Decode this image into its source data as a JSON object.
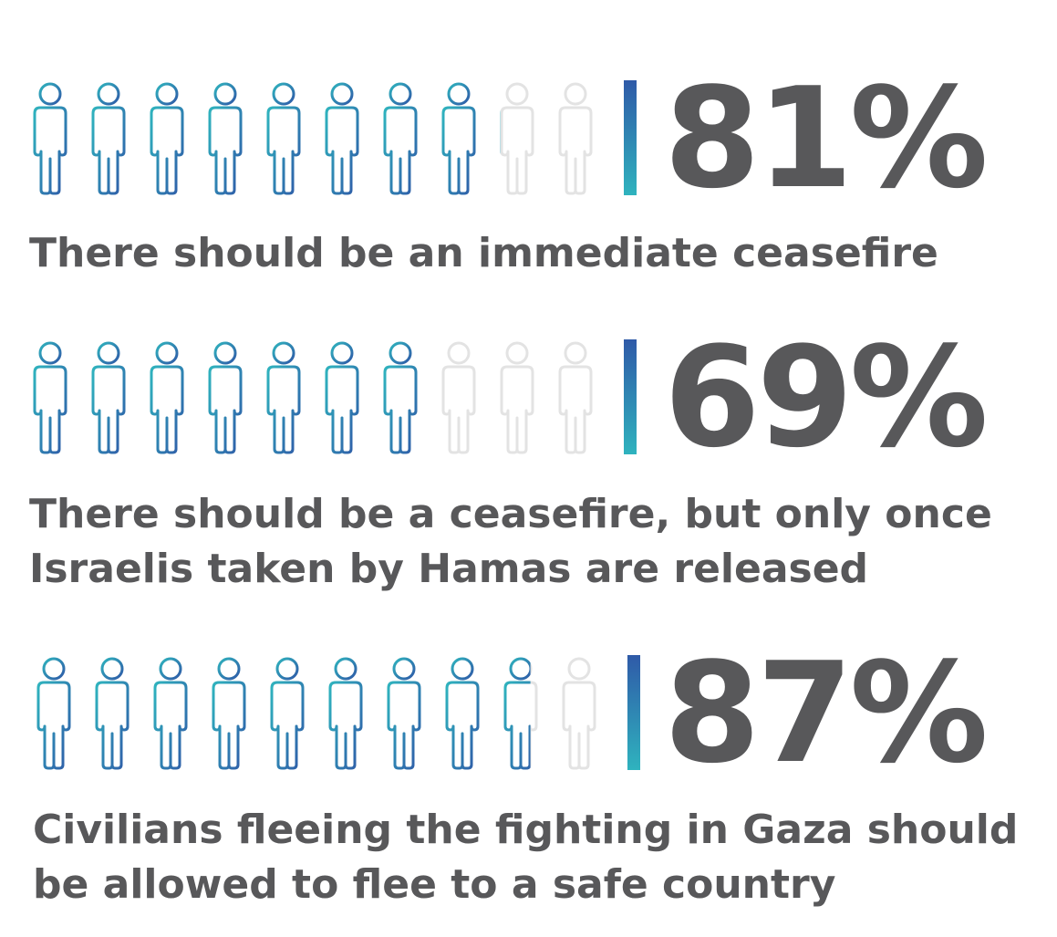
{
  "chart_data": [
    {
      "type": "pictogram",
      "percent": 81,
      "value_label": "81%",
      "caption": "There should be an immediate ceasefire",
      "icons_total": 10
    },
    {
      "type": "pictogram",
      "percent": 69,
      "value_label": "69%",
      "caption": "There should be a ceasefire, but only once\nIsraelis taken by Hamas are released",
      "icons_total": 10
    },
    {
      "type": "pictogram",
      "percent": 87,
      "value_label": "87%",
      "caption": "Civilians fleeing the fighting in Gaza should\nbe allowed to flee to a safe country",
      "icons_total": 10
    }
  ],
  "colors": {
    "fill_start": "#2fb3be",
    "fill_end": "#2f5aa8",
    "empty": "#e3e3e3",
    "text": "#58585a"
  },
  "icon": "person-outline-icon"
}
